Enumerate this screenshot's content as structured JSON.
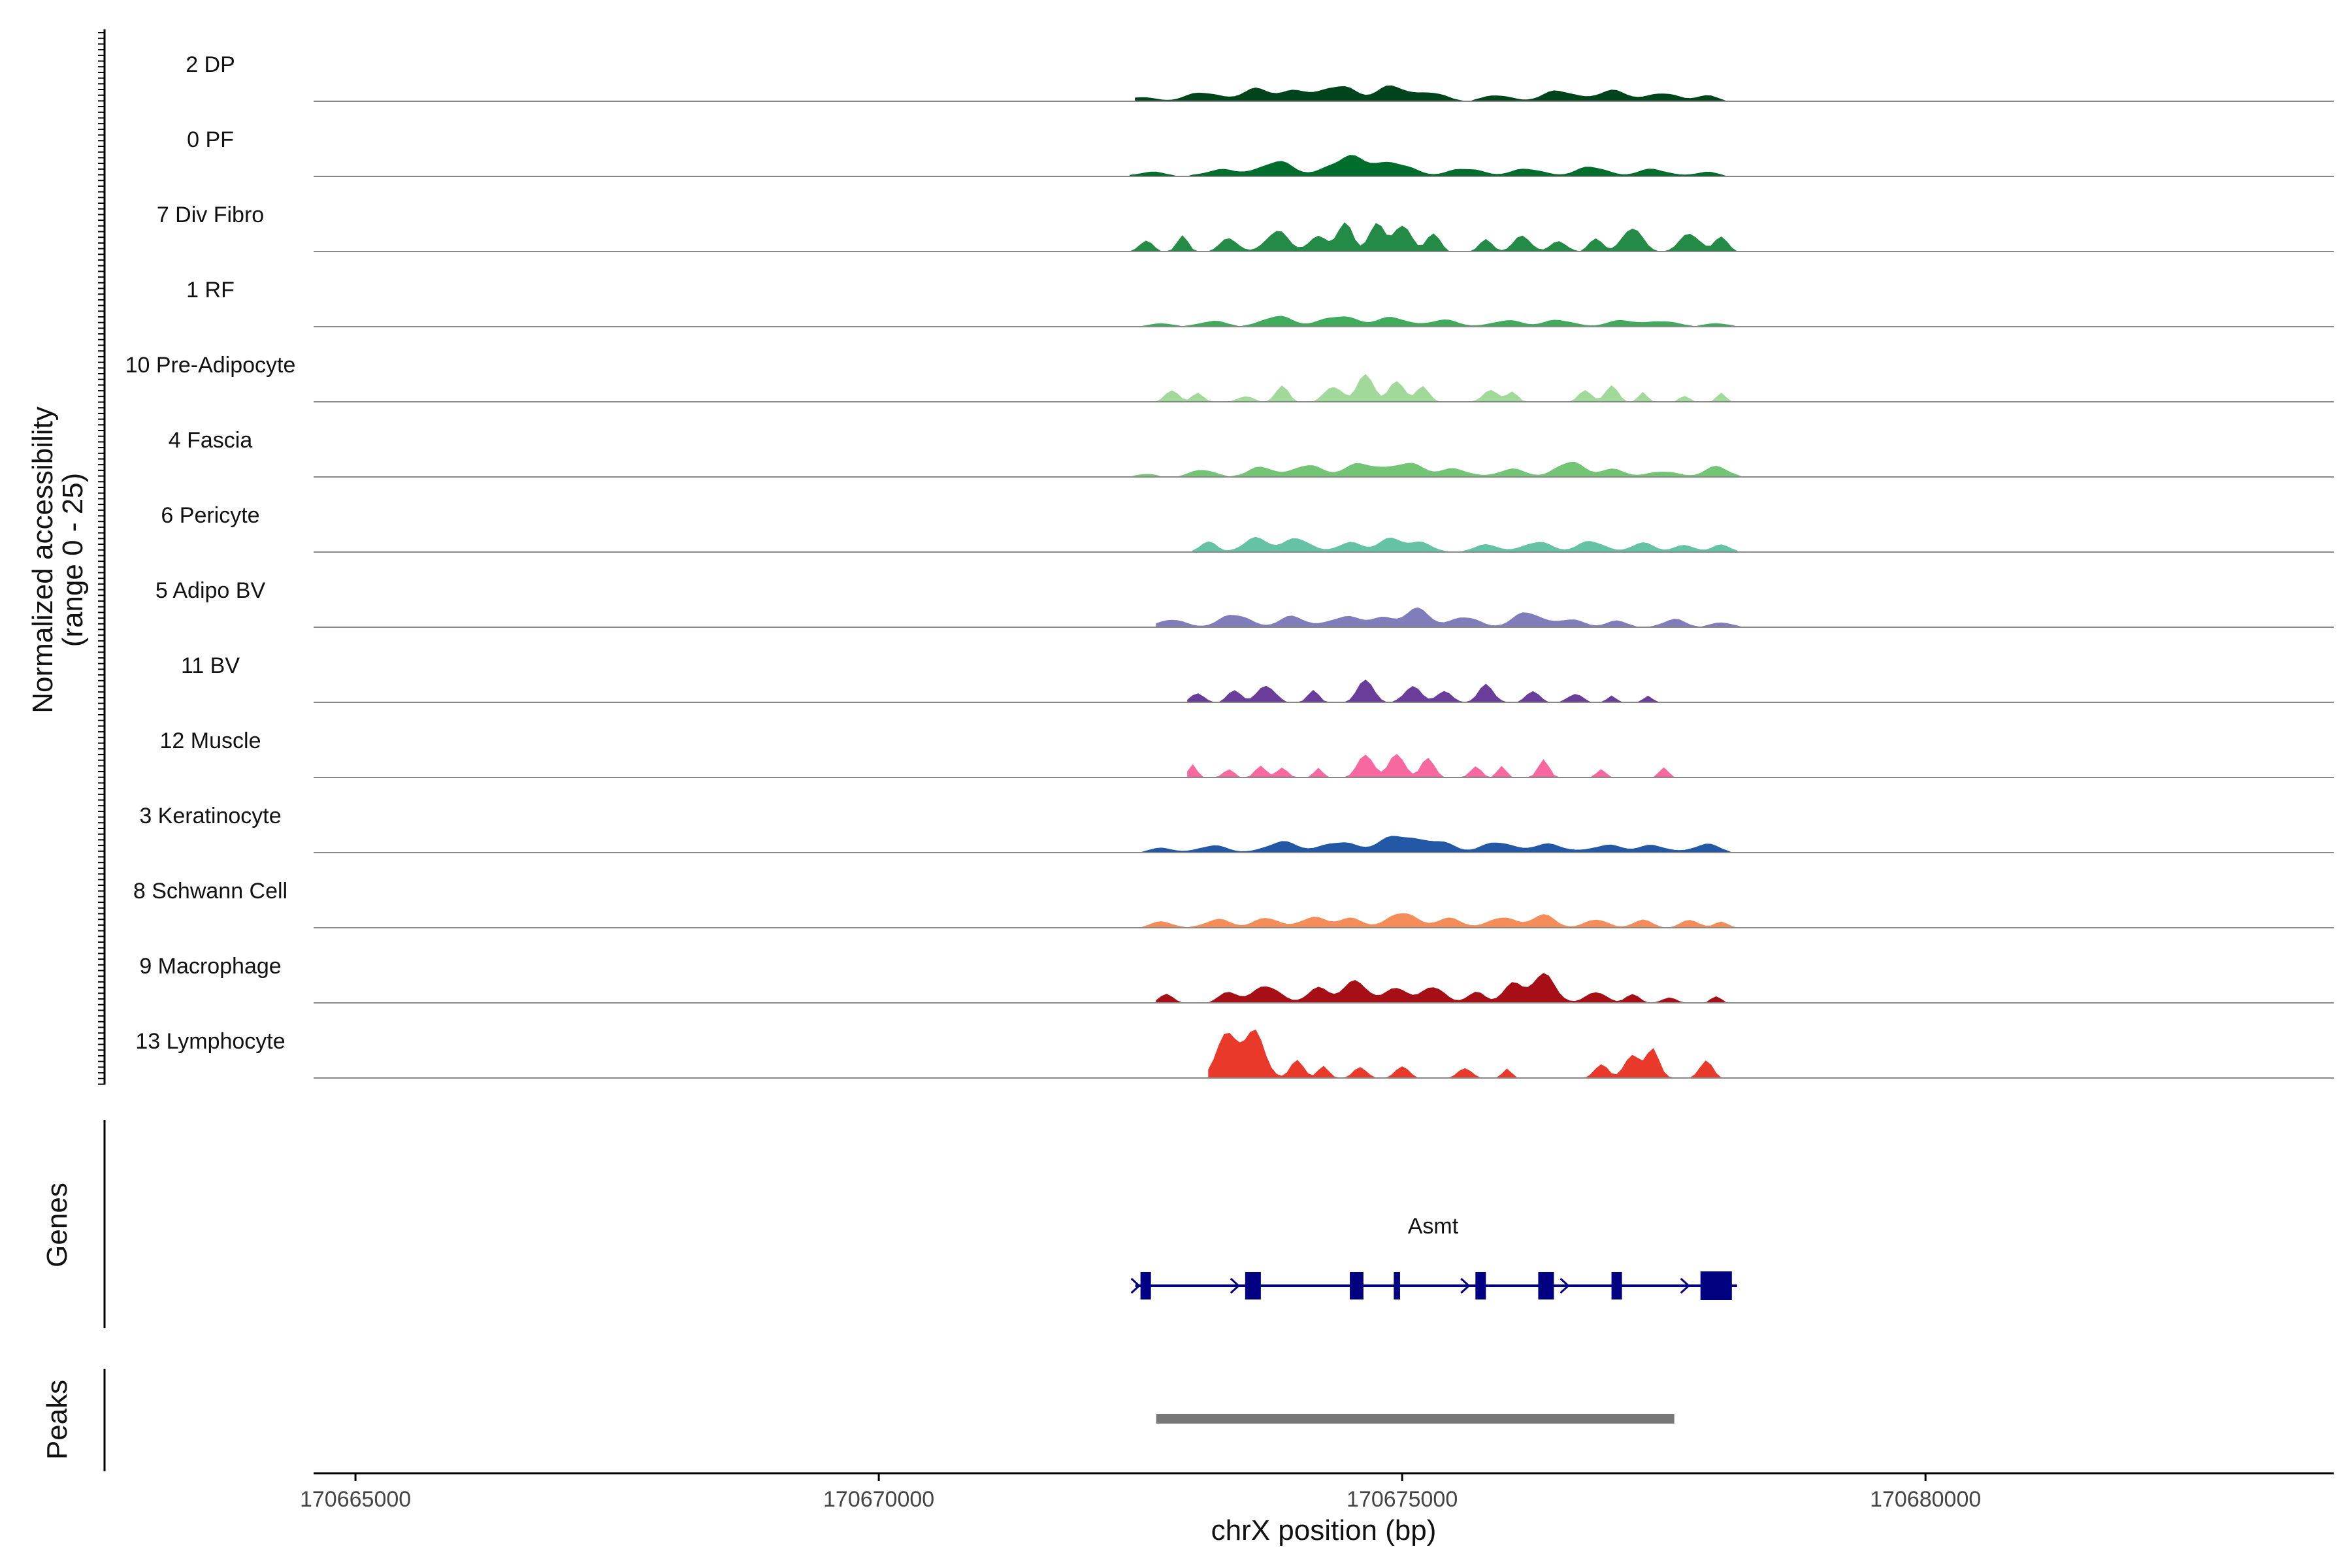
{
  "chart_data": {
    "type": "area",
    "title": "",
    "ylabel": "Normalized accessibility",
    "ylabel_range": "(range 0 - 25)",
    "xlabel": "chrX position (bp)",
    "xlim": [
      170664600,
      170683900
    ],
    "ylim": [
      0,
      25
    ],
    "x_ticks": [
      170665000,
      170670000,
      170675000,
      170680000
    ],
    "x_tick_labels": [
      "170665000",
      "170670000",
      "170675000",
      "170680000"
    ],
    "coverage_binsize_bp": 50,
    "tracks": [
      {
        "name": "2 DP",
        "color": "#00441b",
        "peaks": [
          [
            170672500,
            1.5,
            120
          ],
          [
            170673100,
            3,
            150
          ],
          [
            170673600,
            4.5,
            140
          ],
          [
            170674000,
            3.5,
            130
          ],
          [
            170674400,
            6,
            140
          ],
          [
            170674900,
            5,
            150
          ],
          [
            170675300,
            3,
            120
          ],
          [
            170675900,
            2,
            130
          ],
          [
            170676500,
            4,
            140
          ],
          [
            170677000,
            3.5,
            150
          ],
          [
            170677500,
            3,
            130
          ],
          [
            170677900,
            2,
            100
          ]
        ],
        "span": [
          170672450,
          170678200
        ]
      },
      {
        "name": "0 PF",
        "color": "#006d2c",
        "peaks": [
          [
            170672600,
            1.5,
            130
          ],
          [
            170673300,
            2.5,
            160
          ],
          [
            170673800,
            5,
            150
          ],
          [
            170674500,
            7.5,
            180
          ],
          [
            170674950,
            4,
            160
          ],
          [
            170675600,
            3,
            150
          ],
          [
            170676200,
            2.5,
            150
          ],
          [
            170676800,
            3.5,
            140
          ],
          [
            170677400,
            2.5,
            140
          ],
          [
            170677900,
            1.5,
            110
          ]
        ],
        "span": [
          170672400,
          170678300
        ]
      },
      {
        "name": "7 Div Fibro",
        "color": "#238b45",
        "peaks": [
          [
            170672550,
            4,
            60
          ],
          [
            170672900,
            5,
            50
          ],
          [
            170673350,
            5,
            80
          ],
          [
            170673800,
            7,
            100
          ],
          [
            170674200,
            5,
            90
          ],
          [
            170674450,
            11,
            70
          ],
          [
            170674750,
            10,
            70
          ],
          [
            170675000,
            9,
            80
          ],
          [
            170675300,
            7,
            60
          ],
          [
            170675800,
            4,
            60
          ],
          [
            170676150,
            5,
            80
          ],
          [
            170676500,
            4,
            70
          ],
          [
            170676850,
            5,
            60
          ],
          [
            170677200,
            8,
            90
          ],
          [
            170677750,
            7,
            90
          ],
          [
            170678050,
            5,
            60
          ]
        ],
        "span": [
          170672400,
          170678250
        ]
      },
      {
        "name": "1 RF",
        "color": "#41ab5d",
        "peaks": [
          [
            170672700,
            1,
            110
          ],
          [
            170673200,
            2,
            120
          ],
          [
            170673800,
            3.5,
            140
          ],
          [
            170674400,
            4,
            160
          ],
          [
            170674900,
            3,
            140
          ],
          [
            170675400,
            2.5,
            130
          ],
          [
            170676000,
            2,
            140
          ],
          [
            170676500,
            2.5,
            130
          ],
          [
            170677100,
            2,
            140
          ],
          [
            170677500,
            2,
            130
          ],
          [
            170678000,
            1,
            120
          ]
        ],
        "span": [
          170672500,
          170678250
        ]
      },
      {
        "name": "10 Pre-Adipocyte",
        "color": "#a1d99b",
        "peaks": [
          [
            170672800,
            4,
            60
          ],
          [
            170673050,
            3,
            50
          ],
          [
            170673500,
            2,
            70
          ],
          [
            170673850,
            5,
            60
          ],
          [
            170674350,
            6,
            80
          ],
          [
            170674650,
            11,
            70
          ],
          [
            170674950,
            7,
            70
          ],
          [
            170675200,
            5,
            60
          ],
          [
            170675850,
            4,
            70
          ],
          [
            170676050,
            3,
            50
          ],
          [
            170676750,
            4,
            60
          ],
          [
            170677000,
            5,
            60
          ],
          [
            170677300,
            3,
            40
          ],
          [
            170677700,
            2,
            50
          ],
          [
            170678050,
            3,
            40
          ]
        ],
        "span": [
          170672600,
          170678200
        ]
      },
      {
        "name": "4 Fascia",
        "color": "#74c476",
        "peaks": [
          [
            170672550,
            1,
            90
          ],
          [
            170673100,
            2.5,
            110
          ],
          [
            170673650,
            3.5,
            120
          ],
          [
            170674100,
            4,
            130
          ],
          [
            170674600,
            5,
            150
          ],
          [
            170675050,
            4.5,
            150
          ],
          [
            170675500,
            3,
            130
          ],
          [
            170676050,
            2.5,
            130
          ],
          [
            170676600,
            6,
            120
          ],
          [
            170677000,
            2.5,
            120
          ],
          [
            170677500,
            2,
            130
          ],
          [
            170678000,
            3.5,
            110
          ]
        ],
        "span": [
          170672400,
          170678250
        ]
      },
      {
        "name": "6 Pericyte",
        "color": "#66c2a4",
        "peaks": [
          [
            170673150,
            4,
            70
          ],
          [
            170673600,
            5,
            120
          ],
          [
            170674000,
            4.5,
            120
          ],
          [
            170674500,
            3.5,
            120
          ],
          [
            170674900,
            4.5,
            120
          ],
          [
            170675200,
            3,
            100
          ],
          [
            170675800,
            2.5,
            120
          ],
          [
            170676300,
            3.5,
            130
          ],
          [
            170676800,
            4,
            120
          ],
          [
            170677300,
            3,
            110
          ],
          [
            170677700,
            2.5,
            100
          ],
          [
            170678050,
            2.5,
            80
          ]
        ],
        "span": [
          170673000,
          170678200
        ]
      },
      {
        "name": "5 Adipo BV",
        "color": "#807dba",
        "peaks": [
          [
            170672800,
            2.5,
            120
          ],
          [
            170673400,
            5,
            130
          ],
          [
            170673950,
            3.5,
            120
          ],
          [
            170674450,
            4,
            140
          ],
          [
            170674800,
            3,
            120
          ],
          [
            170675150,
            6,
            120
          ],
          [
            170675600,
            4,
            120
          ],
          [
            170676200,
            5,
            130
          ],
          [
            170676600,
            3,
            120
          ],
          [
            170677050,
            2,
            100
          ],
          [
            170677600,
            3,
            100
          ],
          [
            170678050,
            1.5,
            100
          ]
        ],
        "span": [
          170672650,
          170678300
        ]
      },
      {
        "name": "11 BV",
        "color": "#6a3d9a",
        "peaks": [
          [
            170673050,
            3,
            60
          ],
          [
            170673400,
            5,
            60
          ],
          [
            170673700,
            6,
            80
          ],
          [
            170674150,
            4,
            50
          ],
          [
            170674650,
            9,
            70
          ],
          [
            170675100,
            5,
            80
          ],
          [
            170675400,
            4,
            70
          ],
          [
            170675800,
            6,
            70
          ],
          [
            170676250,
            4,
            60
          ],
          [
            170676650,
            3,
            70
          ],
          [
            170677000,
            2,
            40
          ],
          [
            170677350,
            2,
            40
          ]
        ],
        "span": [
          170672950,
          170677500
        ]
      },
      {
        "name": "12 Muscle",
        "color": "#f768a1",
        "peaks": [
          [
            170673000,
            4,
            40
          ],
          [
            170673350,
            3,
            50
          ],
          [
            170673650,
            4,
            50
          ],
          [
            170673850,
            3,
            50
          ],
          [
            170674200,
            3,
            40
          ],
          [
            170674650,
            9,
            70
          ],
          [
            170674950,
            8,
            70
          ],
          [
            170675250,
            7,
            60
          ],
          [
            170675700,
            4,
            50
          ],
          [
            170675950,
            4,
            40
          ],
          [
            170676350,
            6,
            50
          ],
          [
            170676900,
            3,
            40
          ],
          [
            170677500,
            4,
            40
          ]
        ],
        "span": [
          170672950,
          170677600
        ]
      },
      {
        "name": "3 Keratinocyte",
        "color": "#2258a6",
        "peaks": [
          [
            170672700,
            1.5,
            110
          ],
          [
            170673200,
            2.5,
            130
          ],
          [
            170673850,
            3.5,
            150
          ],
          [
            170674400,
            4,
            150
          ],
          [
            170674950,
            5.5,
            170
          ],
          [
            170675350,
            4,
            140
          ],
          [
            170675900,
            3.5,
            140
          ],
          [
            170676400,
            3,
            150
          ],
          [
            170676950,
            2.5,
            140
          ],
          [
            170677400,
            2.5,
            130
          ],
          [
            170677900,
            3,
            120
          ]
        ],
        "span": [
          170672500,
          170678300
        ]
      },
      {
        "name": "8 Schwann Cell",
        "color": "#f58d5a",
        "peaks": [
          [
            170672700,
            2,
            100
          ],
          [
            170673250,
            3,
            120
          ],
          [
            170673700,
            3.5,
            110
          ],
          [
            170674150,
            3.5,
            120
          ],
          [
            170674500,
            3.5,
            120
          ],
          [
            170675000,
            5,
            130
          ],
          [
            170675450,
            3.5,
            120
          ],
          [
            170675950,
            3.5,
            120
          ],
          [
            170676350,
            4.5,
            110
          ],
          [
            170676850,
            3,
            100
          ],
          [
            170677300,
            2.5,
            90
          ],
          [
            170677750,
            3,
            80
          ],
          [
            170678050,
            2,
            60
          ]
        ],
        "span": [
          170672500,
          170678200
        ]
      },
      {
        "name": "9 Macrophage",
        "color": "#a50f15",
        "peaks": [
          [
            170672750,
            3,
            60
          ],
          [
            170673350,
            4,
            90
          ],
          [
            170673700,
            6,
            120
          ],
          [
            170674200,
            5,
            100
          ],
          [
            170674550,
            8,
            120
          ],
          [
            170674950,
            5,
            100
          ],
          [
            170675300,
            6,
            100
          ],
          [
            170675700,
            4,
            80
          ],
          [
            170676050,
            6,
            90
          ],
          [
            170676350,
            10,
            110
          ],
          [
            170676850,
            4,
            90
          ],
          [
            170677200,
            3,
            60
          ],
          [
            170677550,
            2,
            60
          ],
          [
            170678000,
            2,
            50
          ]
        ],
        "span": [
          170672650,
          170678200
        ]
      },
      {
        "name": "13 Lymphocyte",
        "color": "#e8392b",
        "peaks": [
          [
            170673350,
            17,
            110
          ],
          [
            170673600,
            15,
            90
          ],
          [
            170674000,
            6,
            60
          ],
          [
            170674250,
            4,
            50
          ],
          [
            170674600,
            4,
            60
          ],
          [
            170675000,
            4,
            60
          ],
          [
            170675600,
            4,
            60
          ],
          [
            170676000,
            3,
            40
          ],
          [
            170676900,
            5,
            60
          ],
          [
            170677200,
            8,
            70
          ],
          [
            170677400,
            10,
            60
          ],
          [
            170677900,
            6,
            60
          ]
        ],
        "span": [
          170673150,
          170678050
        ]
      }
    ],
    "gene": {
      "name": "Asmt",
      "color": "#000080",
      "start": 170672450,
      "end": 170678200,
      "exons": [
        [
          170672500,
          170672600
        ],
        [
          170673500,
          170673650
        ],
        [
          170674500,
          170674630
        ],
        [
          170674920,
          170674980
        ],
        [
          170675700,
          170675800
        ],
        [
          170676300,
          170676450
        ],
        [
          170677000,
          170677100
        ],
        [
          170677850,
          170678150
        ]
      ],
      "arrows": [
        170672450,
        170673400,
        170675600,
        170676550,
        170677700
      ]
    },
    "peak_regions": [
      {
        "start": 170672650,
        "end": 170677600,
        "color": "#777777"
      }
    ]
  },
  "panels": {
    "genes_title": "Genes",
    "peaks_title": "Peaks"
  }
}
